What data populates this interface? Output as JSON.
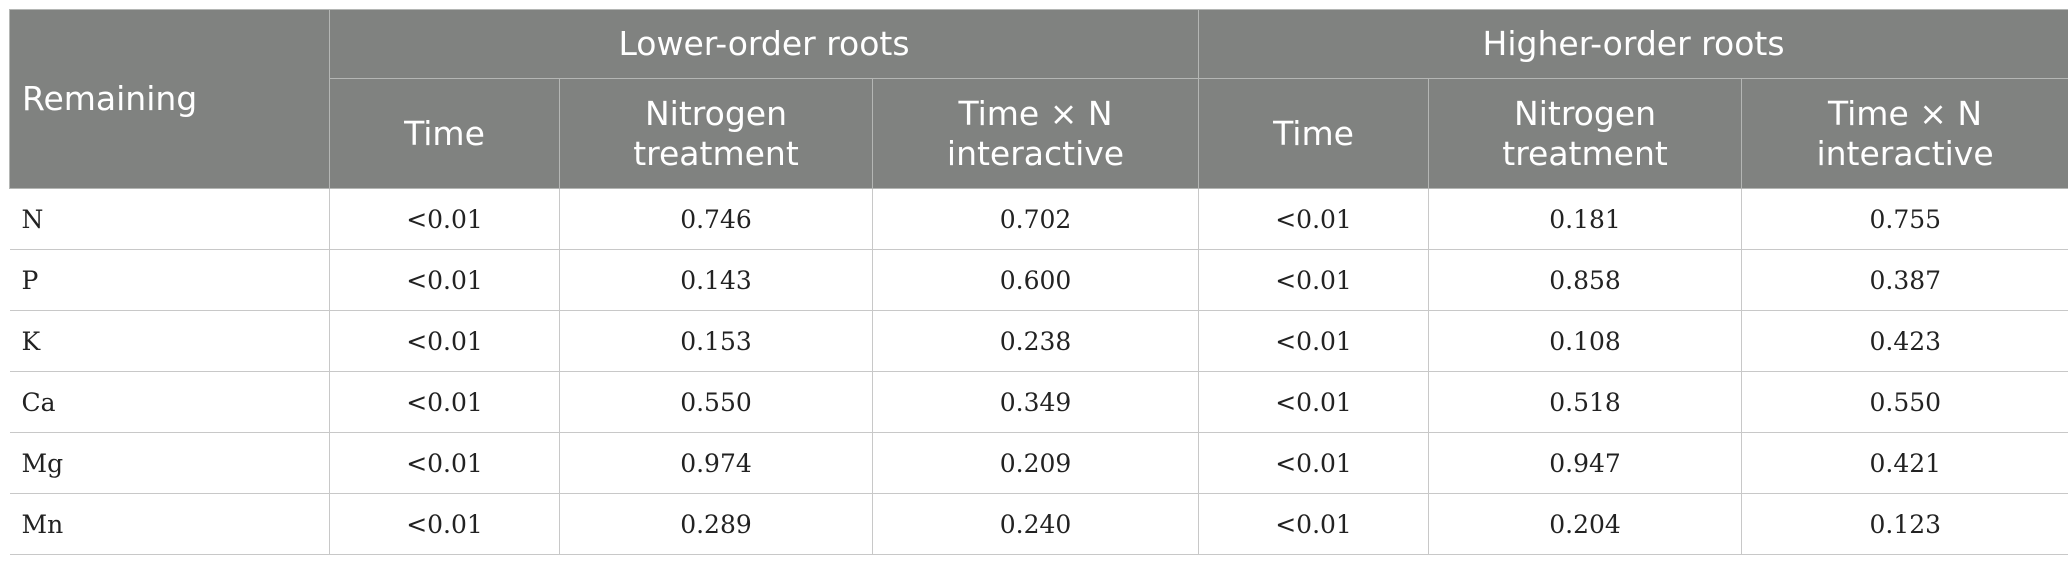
{
  "header": {
    "row_label": "Remaining",
    "groups": [
      "Lower-order roots",
      "Higher-order roots"
    ],
    "columns": [
      {
        "line1": "Time",
        "line2": ""
      },
      {
        "line1": "Nitrogen",
        "line2": "treatment"
      },
      {
        "line1": "Time × N",
        "line2": "interactive"
      },
      {
        "line1": "Time",
        "line2": ""
      },
      {
        "line1": "Nitrogen",
        "line2": "treatment"
      },
      {
        "line1": "Time × N",
        "line2": "interactive"
      }
    ]
  },
  "rows": [
    {
      "label": "N",
      "values": [
        "<0.01",
        "0.746",
        "0.702",
        "<0.01",
        "0.181",
        "0.755"
      ]
    },
    {
      "label": "P",
      "values": [
        "<0.01",
        "0.143",
        "0.600",
        "<0.01",
        "0.858",
        "0.387"
      ]
    },
    {
      "label": "K",
      "values": [
        "<0.01",
        "0.153",
        "0.238",
        "<0.01",
        "0.108",
        "0.423"
      ]
    },
    {
      "label": "Ca",
      "values": [
        "<0.01",
        "0.550",
        "0.349",
        "<0.01",
        "0.518",
        "0.550"
      ]
    },
    {
      "label": "Mg",
      "values": [
        "<0.01",
        "0.974",
        "0.209",
        "<0.01",
        "0.947",
        "0.421"
      ]
    },
    {
      "label": "Mn",
      "values": [
        "<0.01",
        "0.289",
        "0.240",
        "<0.01",
        "0.204",
        "0.123"
      ]
    }
  ]
}
